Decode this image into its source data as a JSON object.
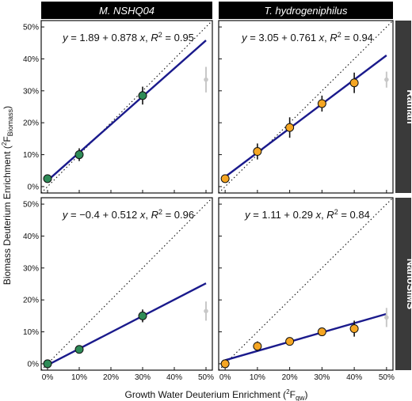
{
  "figure": {
    "xlabel_main": "Growth Water Deuterium Enrichment (",
    "xlabel_sym": "F",
    "xlabel_sub": "gw",
    "ylabel_main": "Biomass Deuterium Enrichment (",
    "ylabel_sym": "F",
    "ylabel_sub": "Biomass",
    "sup2": "2",
    "paren_close": ")"
  },
  "columns": [
    "M. NSHQ04",
    "T. hydrogeniphilus"
  ],
  "rows": [
    "Raman",
    "NanoSIMS"
  ],
  "colors": {
    "green": "#2e8b57",
    "orange": "#f5a623",
    "fit": "#1a1a8c",
    "header": "#000000",
    "strip": "#3a3a3a",
    "ghost": "#c8c8c8"
  },
  "chart_data": [
    {
      "type": "scatter",
      "column": "M. NSHQ04",
      "row": "Raman",
      "equation": {
        "a": "1.89",
        "op": "+",
        "b": "0.878",
        "r2": "0.95"
      },
      "x": [
        0,
        10,
        30
      ],
      "y": [
        2.5,
        10,
        28.5
      ],
      "err": [
        0.8,
        2,
        2.8
      ],
      "fit": {
        "intercept": 1.89,
        "slope": 0.878
      },
      "reference": {
        "x": 50,
        "y": 33.5,
        "err": 4
      },
      "point_color": "green",
      "xlim": [
        -2,
        52
      ],
      "ylim": [
        -2,
        52
      ],
      "xticks": [
        "0%",
        "10%",
        "20%",
        "30%",
        "40%",
        "50%"
      ],
      "yticks": [
        "0%",
        "10%",
        "20%",
        "30%",
        "40%",
        "50%"
      ]
    },
    {
      "type": "scatter",
      "column": "T. hydrogeniphilus",
      "row": "Raman",
      "equation": {
        "a": "3.05",
        "op": "+",
        "b": "0.761",
        "r2": "0.94"
      },
      "x": [
        0,
        10,
        20,
        30,
        40
      ],
      "y": [
        2.5,
        11,
        18.5,
        26,
        32.5
      ],
      "err": [
        0.8,
        2.5,
        3.2,
        2.5,
        3.2
      ],
      "fit": {
        "intercept": 3.05,
        "slope": 0.761
      },
      "reference": {
        "x": 50,
        "y": 33.5,
        "err": 2.5
      },
      "point_color": "orange",
      "xlim": [
        -2,
        52
      ],
      "ylim": [
        -2,
        52
      ],
      "xticks": [
        "0%",
        "10%",
        "20%",
        "30%",
        "40%",
        "50%"
      ],
      "yticks": [
        "0%",
        "10%",
        "20%",
        "30%",
        "40%",
        "50%"
      ]
    },
    {
      "type": "scatter",
      "column": "M. NSHQ04",
      "row": "NanoSIMS",
      "equation": {
        "a": "−0.4",
        "op": "+",
        "b": "0.512",
        "r2": "0.96"
      },
      "x": [
        0,
        10,
        30
      ],
      "y": [
        0,
        4.5,
        15
      ],
      "err": [
        0.5,
        0.8,
        2
      ],
      "fit": {
        "intercept": -0.4,
        "slope": 0.512
      },
      "reference": {
        "x": 50,
        "y": 16.5,
        "err": 3
      },
      "point_color": "green",
      "xlim": [
        -2,
        52
      ],
      "ylim": [
        -2,
        52
      ],
      "xticks": [
        "0%",
        "10%",
        "20%",
        "30%",
        "40%",
        "50%"
      ],
      "yticks": [
        "0%",
        "10%",
        "20%",
        "30%",
        "40%",
        "50%"
      ]
    },
    {
      "type": "scatter",
      "column": "T. hydrogeniphilus",
      "row": "NanoSIMS",
      "equation": {
        "a": "1.11",
        "op": "+",
        "b": "0.29",
        "r2": "0.84"
      },
      "x": [
        0,
        10,
        20,
        30,
        40
      ],
      "y": [
        0,
        5.5,
        7,
        10,
        11
      ],
      "err": [
        0.5,
        1.5,
        1,
        1.2,
        2.5
      ],
      "fit": {
        "intercept": 1.11,
        "slope": 0.29
      },
      "reference": {
        "x": 50,
        "y": 14.5,
        "err": 3
      },
      "point_color": "orange",
      "xlim": [
        -2,
        52
      ],
      "ylim": [
        -2,
        52
      ],
      "xticks": [
        "0%",
        "10%",
        "20%",
        "30%",
        "40%",
        "50%"
      ],
      "yticks": [
        "0%",
        "10%",
        "20%",
        "30%",
        "40%",
        "50%"
      ]
    }
  ]
}
